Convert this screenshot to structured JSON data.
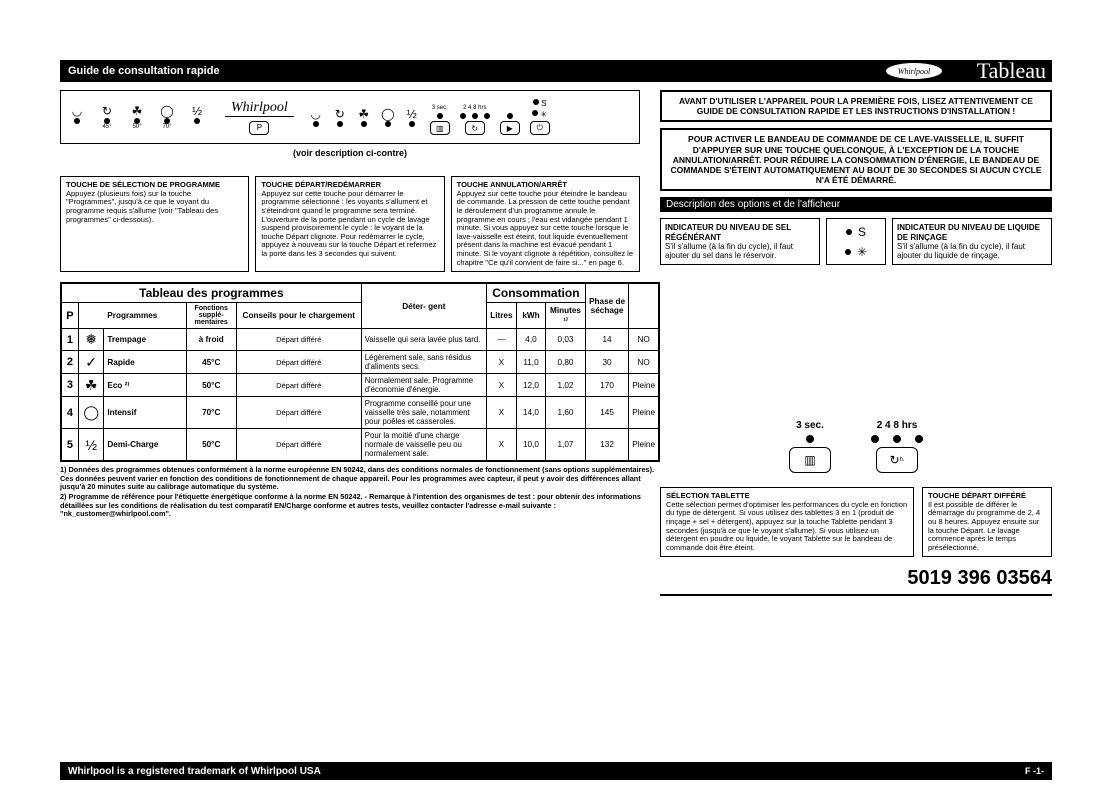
{
  "header": {
    "guide": "Guide de consultation rapide",
    "tableau": "Tableau",
    "brand": "Whirlpool"
  },
  "panel": {
    "temps": [
      "45°",
      "50°",
      "70°"
    ],
    "brand": "Whirlpool",
    "p_label": "P",
    "delay_sec": "3 sec.",
    "delay_hours": "2  4  8 hrs",
    "sub": "(voir description ci-contre)"
  },
  "notice1": "AVANT D'UTILISER L'APPAREIL POUR LA PREMIÈRE FOIS, LISEZ ATTENTIVEMENT CE GUIDE DE CONSULTATION RAPIDE ET LES INSTRUCTIONS D'INSTALLATION !",
  "notice2": "POUR ACTIVER LE BANDEAU DE COMMANDE DE CE LAVE-VAISSELLE, IL SUFFIT D'APPUYER SUR UNE TOUCHE QUELCONQUE, À L'EXCEPTION DE LA TOUCHE ANNULATION/ARRÊT. POUR RÉDUIRE LA CONSOMMATION D'ÉNERGIE, LE BANDEAU DE COMMANDE S'ÉTEINT AUTOMATIQUEMENT AU BOUT DE 30 SECONDES SI AUCUN CYCLE N'A ÉTÉ DÉMARRÉ.",
  "optbar": "Description des options et de l'afficheur",
  "opt": {
    "salt_hd": "INDICATEUR DU NIVEAU DE SEL RÉGÉNÉRANT",
    "salt_body": "S'il s'allume (à la fin du cycle), il faut ajouter du sel dans le réservoir.",
    "rinse_hd": "INDICATEUR DU NIVEAU DE LIQUIDE DE RINÇAGE",
    "rinse_body": "S'il s'allume (à la fin du cycle), il faut ajouter du liquide de rinçage."
  },
  "callouts": {
    "c1_hd": "TOUCHE DE SÉLECTION DE PROGRAMME",
    "c1_body": "Appuyez (plusieurs fois) sur la touche \"Programmes\", jusqu'à ce que le voyant du programme requis s'allume (voir \"Tableau des programmes\" ci-dessous).",
    "c2_hd": "TOUCHE DÉPART/REDÉMARRER",
    "c2_body": "Appuyez sur cette touche pour démarrer le programme sélectionné : les voyants s'allument et s'éteindront quand le programme sera terminé. L'ouverture de la porte pendant un cycle de lavage suspend provisoirement le cycle : le voyant de la touche Départ clignote. Pour redémarrer le cycle, appuyez à nouveau sur la touche Départ et refermez la porte dans les 3 secondes qui suivent.",
    "c3_hd": "TOUCHE ANNULATION/ARRÊT",
    "c3_body": "Appuyez sur cette touche pour éteindre le bandeau de commande. La pression de cette touche pendant le déroulement d'un programme annule le programme en cours ; l'eau est vidangée pendant 1 minute. Si vous appuyez sur cette touche lorsque le lave-vaisselle est éteint, tout liquide éventuellement présent dans la machine est évacué pendant 1 minute. Si le voyant clignote à répétition, consultez le chapitre \"Ce qu'il convient de faire si...\" en page 6."
  },
  "table": {
    "title_left": "Tableau des programmes",
    "title_right": "Consommation",
    "h_p": "P",
    "h_prog": "Programmes",
    "h_func": "Fonctions supplé-\nmentaires",
    "h_adv": "Conseils pour le chargement",
    "h_det": "Déter-\ngent",
    "h_l": "Litres",
    "h_kwh": "kWh",
    "h_min": "Minutes ¹⁾",
    "h_dry": "Phase de séchage",
    "rows": [
      {
        "n": "1",
        "icon": "❅",
        "name": "Trempage",
        "temp": "à froid",
        "func": "Départ différé",
        "adv": "Vaisselle qui sera lavée plus tard.",
        "det": "—",
        "l": "4,0",
        "kwh": "0,03",
        "min": "14",
        "dry": "NO"
      },
      {
        "n": "2",
        "icon": "✓",
        "name": "Rapide",
        "temp": "45°C",
        "func": "Départ différé",
        "adv": "Légèrement sale, sans résidus d'aliments secs.",
        "det": "X",
        "l": "11,0",
        "kwh": "0,80",
        "min": "30",
        "dry": "NO"
      },
      {
        "n": "3",
        "icon": "☘",
        "name": "Eco ²⁾",
        "temp": "50°C",
        "func": "Départ différé",
        "adv": "Normalement sale. Programme d'économie d'énergie.",
        "det": "X",
        "l": "12,0",
        "kwh": "1,02",
        "min": "170",
        "dry": "Pleine"
      },
      {
        "n": "4",
        "icon": "◯",
        "name": "Intensif",
        "temp": "70°C",
        "func": "Départ différé",
        "adv": "Programme conseillé pour une vaisselle très sale, notamment pour poêles et casseroles.",
        "det": "X",
        "l": "14,0",
        "kwh": "1,60",
        "min": "145",
        "dry": "Pleine"
      },
      {
        "n": "5",
        "icon": "½",
        "name": "Demi-Charge",
        "temp": "50°C",
        "func": "Départ différé",
        "adv": "Pour la moitié d'une charge normale de vaisselle peu ou normalement sale.",
        "det": "X",
        "l": "10,0",
        "kwh": "1,07",
        "min": "132",
        "dry": "Pleine"
      }
    ]
  },
  "footnotes": {
    "f1": "1)  Données des programmes obtenues conformément à la norme européenne EN 50242, dans des conditions normales de fonctionnement (sans options supplémentaires). Ces données peuvent varier en fonction des conditions de fonctionnement de chaque appareil. Pour les programmes avec capteur, il peut y avoir des différences allant jusqu'à 20 minutes suite au calibrage automatique du système.",
    "f2": "2)  Programme de référence pour l'étiquette énergétique conforme à la norme EN 50242. - Remarque à l'intention des organismes de test : pour obtenir des informations détaillées sur les conditions de réalisation du test comparatif EN/Charge conforme et autres tests, veuillez contacter l'adresse e-mail suivante : \"nk_customer@whirlpool.com\"."
  },
  "diag": {
    "sec": "3 sec.",
    "hrs": "2   4   8 hrs"
  },
  "lr": {
    "tab_hd": "SÉLECTION TABLETTE",
    "tab_body": "Cette sélection permet d'optimiser les performances du cycle en fonction du type de détergent. Si vous utilisez des tablettes 3 en 1 (produit de rinçage + sel + détergent), appuyez sur la touche Tablette pendant 3 secondes (jusqu'à ce que le voyant s'allume). Si vous utilisez un détergent en poudre ou liquide, le voyant Tablette sur le bandeau de commande doit être éteint.",
    "dep_hd": "TOUCHE DÉPART DIFFÉRÉ",
    "dep_body": "Il est possible de différer le démarrage du programme de 2, 4 ou 8 heures. Appuyez ensuite sur la touche Départ. Le lavage commence après le temps présélectionné."
  },
  "partno": "5019 396 03564",
  "footer": {
    "trademark": "Whirlpool is a registered trademark of Whirlpool USA",
    "page": "F -1-"
  }
}
